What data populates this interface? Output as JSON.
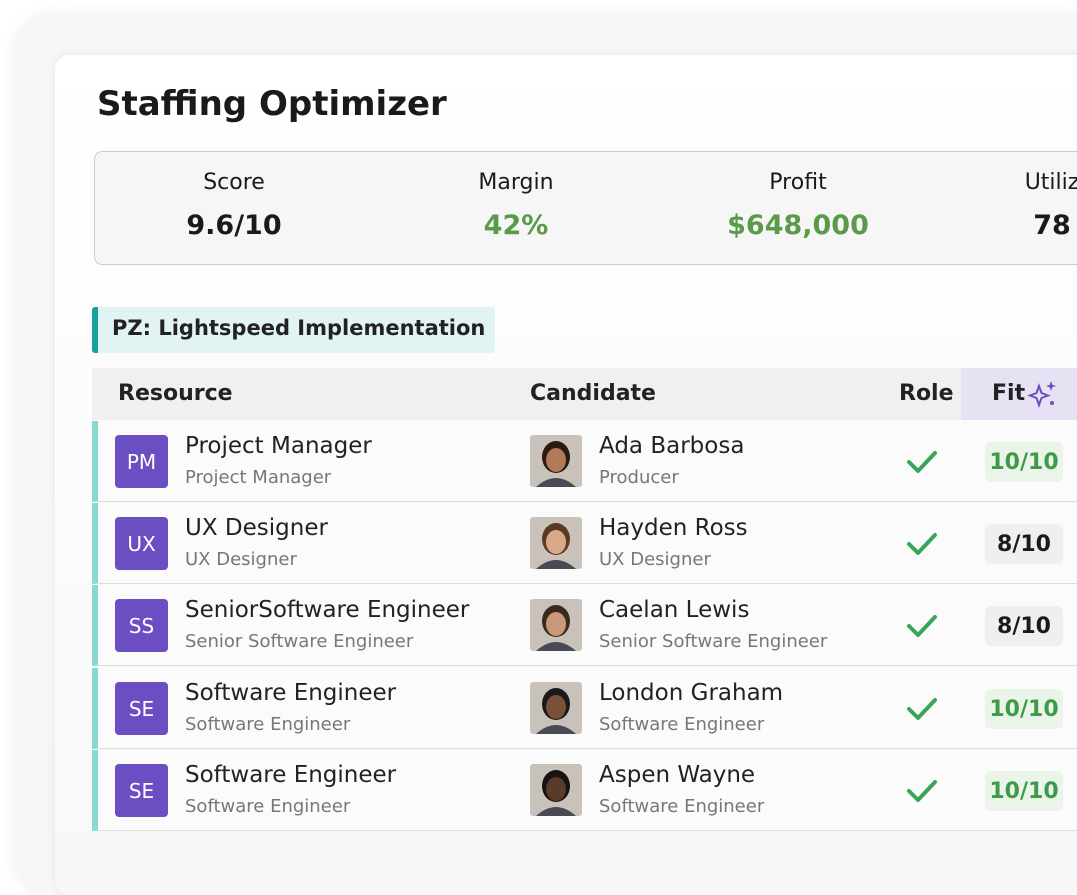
{
  "header": {
    "title": "Staffing Optimizer"
  },
  "metrics": [
    {
      "label": "Score",
      "value": "9.6/10",
      "color": "#1a1a1a"
    },
    {
      "label": "Margin",
      "value": "42%",
      "color": "#5a9a4a"
    },
    {
      "label": "Profit",
      "value": "$648,000",
      "color": "#5a9a4a"
    },
    {
      "label": "Utiliz",
      "value": "78",
      "color": "#1a1a1a"
    }
  ],
  "project": {
    "title": "PZ: Lightspeed Implementation"
  },
  "table": {
    "columns": [
      "Resource",
      "Candidate",
      "Role",
      "Fit"
    ],
    "rows": [
      {
        "initials": "PM",
        "resource": "Project Manager",
        "resource_sub": "Project Manager",
        "candidate": "Ada Barbosa",
        "candidate_sub": "Producer",
        "fit": "10/10",
        "fit_color": "#3e9a48",
        "fit_bg": "#eaf4e8"
      },
      {
        "initials": "UX",
        "resource": "UX Designer",
        "resource_sub": "UX Designer",
        "candidate": "Hayden Ross",
        "candidate_sub": "UX Designer",
        "fit": "8/10",
        "fit_color": "#1a1a1a",
        "fit_bg": "#efefef"
      },
      {
        "initials": "SS",
        "resource": "SeniorSoftware Engineer",
        "resource_sub": "Senior Software Engineer",
        "candidate": "Caelan Lewis",
        "candidate_sub": "Senior Software Engineer",
        "fit": "8/10",
        "fit_color": "#1a1a1a",
        "fit_bg": "#efefef"
      },
      {
        "initials": "SE",
        "resource": "Software Engineer",
        "resource_sub": "Software Engineer",
        "candidate": "London Graham",
        "candidate_sub": "Software Engineer",
        "fit": "10/10",
        "fit_color": "#3e9a48",
        "fit_bg": "#eaf4e8"
      },
      {
        "initials": "SE",
        "resource": "Software Engineer",
        "resource_sub": "Software Engineer",
        "candidate": "Aspen Wayne",
        "candidate_sub": "Software Engineer",
        "fit": "10/10",
        "fit_color": "#3e9a48",
        "fit_bg": "#eaf4e8"
      }
    ]
  }
}
